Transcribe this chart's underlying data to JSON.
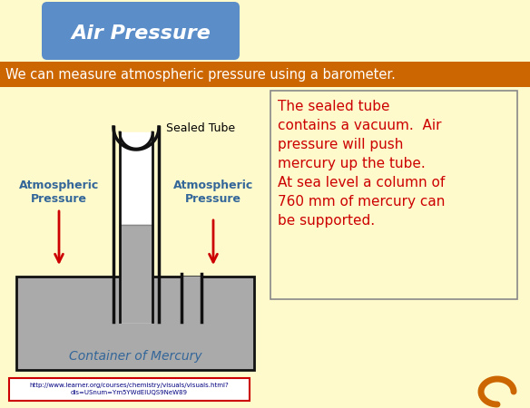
{
  "bg_color": "#FFFACC",
  "title_text": "Air Pressure",
  "title_bg": "#5B8DC8",
  "title_fg": "white",
  "subtitle_text": "We can measure atmospheric pressure using a barometer.",
  "subtitle_bg": "#CC6600",
  "subtitle_fg": "white",
  "desc_text": "The sealed tube\ncontains a vacuum.  Air\npressure will push\nmercury up the tube.\nAt sea level a column of\n760 mm of mercury can\nbe supported.",
  "desc_fg": "#CC0000",
  "desc_border": "#888888",
  "mercury_color": "#AAAAAA",
  "tube_line_color": "#111111",
  "arrow_color": "#CC0000",
  "label_color": "#336699",
  "sealed_tube_label": "Sealed Tube",
  "atm_left": "Atmospheric\nPressure",
  "atm_right": "Atmospheric\nPressure",
  "container_label": "Container of Mercury",
  "url_text": "http://www.learner.org/courses/chemistry/visuals/visuals.html?\ndis=USnum=Ym5YWdEIUQS9NeW89",
  "footer_bg": "white",
  "footer_border": "#CC0000",
  "curl_color": "#CC6600",
  "container_fill": "#AAAAAA",
  "container_border": "#111111"
}
